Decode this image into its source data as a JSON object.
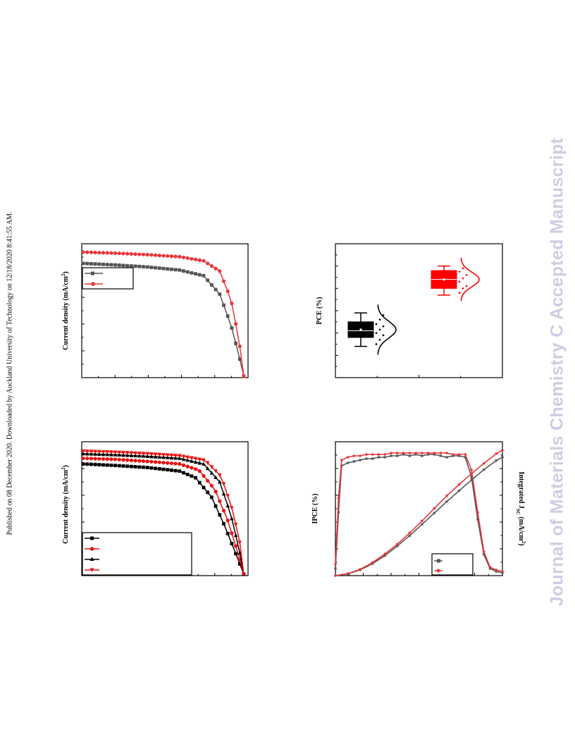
{
  "page": {
    "side_note": "Published on 08 December 2020. Downloaded by Auckland University of Technology on 12/18/2020 8:41:55 AM.",
    "watermark": "Journal of Materials Chemistry C Accepted Manuscript"
  },
  "colors": {
    "black": "#000000",
    "gray": "#555555",
    "red": "#e8363b",
    "solid_red": "#ff0000"
  },
  "chart_data": [
    {
      "type": "line",
      "ylabel": "Current density (mA/cm²)",
      "series": [
        {
          "marker": "square",
          "color": "#555555",
          "x": [
            0.0,
            0.2,
            0.4,
            0.6,
            0.75,
            0.85,
            0.92,
            0.97,
            1.0
          ],
          "values": [
            22.0,
            21.7,
            21.3,
            20.7,
            19.6,
            16.0,
            10.0,
            4.0,
            0.0
          ]
        },
        {
          "marker": "circle",
          "color": "#e8363b",
          "x": [
            0.0,
            0.2,
            0.4,
            0.6,
            0.75,
            0.85,
            0.92,
            0.97,
            1.0
          ],
          "values": [
            24.2,
            24.0,
            23.7,
            23.3,
            22.5,
            20.5,
            15.0,
            7.0,
            0.0
          ]
        }
      ]
    },
    {
      "type": "line",
      "ylabel": "Current density (mA/cm²)",
      "series": [
        {
          "marker": "square",
          "color": "#000000",
          "x": [
            0.0,
            0.2,
            0.4,
            0.6,
            0.7,
            0.8,
            0.88,
            0.95,
            1.0
          ],
          "values": [
            21.5,
            21.2,
            20.8,
            20.1,
            18.8,
            15.0,
            9.5,
            4.0,
            0.0
          ]
        },
        {
          "marker": "circle",
          "color": "#e81010",
          "x": [
            0.0,
            0.2,
            0.4,
            0.6,
            0.72,
            0.82,
            0.9,
            0.96,
            1.0
          ],
          "values": [
            22.6,
            22.4,
            22.0,
            21.5,
            20.3,
            16.5,
            10.5,
            4.5,
            0.0
          ]
        },
        {
          "marker": "triangle-up",
          "color": "#000000",
          "x": [
            0.0,
            0.2,
            0.4,
            0.6,
            0.75,
            0.85,
            0.92,
            0.97,
            1.0
          ],
          "values": [
            23.5,
            23.3,
            23.0,
            22.6,
            21.5,
            18.0,
            11.5,
            5.0,
            0.0
          ]
        },
        {
          "marker": "triangle-down",
          "color": "#e81010",
          "x": [
            0.0,
            0.2,
            0.4,
            0.6,
            0.76,
            0.86,
            0.93,
            0.98,
            1.0
          ],
          "values": [
            24.0,
            23.8,
            23.5,
            23.1,
            22.2,
            19.0,
            12.5,
            5.5,
            0.0
          ]
        }
      ]
    },
    {
      "type": "box",
      "ylabel": "PCE (%)",
      "groups": [
        {
          "color": "#000000",
          "min": 15.4,
          "q1": 15.8,
          "median": 16.1,
          "mean": 16.15,
          "q3": 16.5,
          "max": 16.9,
          "points": [
            15.5,
            15.7,
            15.9,
            16.0,
            16.15,
            16.3,
            16.4,
            16.6,
            16.8
          ]
        },
        {
          "color": "#ff0000",
          "min": 17.7,
          "q1": 18.0,
          "median": 18.4,
          "mean": 18.4,
          "q3": 18.8,
          "max": 19.0,
          "points": [
            17.8,
            18.0,
            18.1,
            18.3,
            18.45,
            18.6,
            18.75,
            18.9
          ]
        }
      ],
      "ylim": [
        14.0,
        20.0
      ]
    },
    {
      "type": "line",
      "ylabel": "IPCE (%)",
      "y2label": "Integrated J",
      "y2label_sub": "SC",
      "y2label_unit": " (mA/cm",
      "y2label_sup": "2",
      "y2label_close": ")",
      "series": [
        {
          "color": "#555555",
          "axis": "ipce",
          "x": [
            300,
            310,
            320,
            340,
            360,
            380,
            400,
            420,
            440,
            460,
            480,
            500,
            520,
            540,
            560,
            580,
            600,
            620,
            640,
            660,
            680,
            700,
            720,
            740,
            760,
            780,
            800,
            820,
            840
          ],
          "values": [
            5,
            45,
            78,
            80,
            81,
            82,
            83,
            83,
            84,
            84,
            85,
            85,
            86,
            85,
            86,
            85,
            86,
            86,
            85,
            84,
            85,
            85,
            84,
            70,
            40,
            15,
            5,
            3,
            2
          ]
        },
        {
          "color": "#e8363b",
          "axis": "ipce",
          "x": [
            300,
            310,
            320,
            340,
            360,
            380,
            400,
            420,
            440,
            460,
            480,
            500,
            520,
            540,
            560,
            580,
            600,
            620,
            640,
            660,
            680,
            700,
            720,
            740,
            760,
            780,
            800,
            820,
            840
          ],
          "values": [
            8,
            55,
            82,
            84,
            85,
            85,
            86,
            86,
            86,
            86,
            87,
            87,
            87,
            87,
            87,
            87,
            87,
            87,
            87,
            87,
            86,
            86,
            86,
            75,
            45,
            17,
            6,
            4,
            3
          ]
        },
        {
          "color": "#555555",
          "axis": "jsc",
          "x": [
            300,
            340,
            380,
            420,
            460,
            500,
            540,
            580,
            620,
            660,
            700,
            740,
            780,
            820,
            840
          ],
          "values": [
            0,
            0.3,
            1.0,
            2.1,
            3.5,
            5.2,
            7.0,
            9.0,
            11.0,
            13.0,
            14.9,
            16.8,
            18.6,
            20.2,
            20.8
          ]
        },
        {
          "color": "#e8363b",
          "axis": "jsc",
          "x": [
            300,
            340,
            380,
            420,
            460,
            500,
            540,
            580,
            620,
            660,
            700,
            740,
            780,
            820,
            840
          ],
          "values": [
            0,
            0.35,
            1.1,
            2.3,
            3.8,
            5.5,
            7.5,
            9.6,
            11.8,
            14.0,
            16.0,
            17.9,
            19.7,
            21.4,
            22.0
          ]
        }
      ]
    }
  ]
}
